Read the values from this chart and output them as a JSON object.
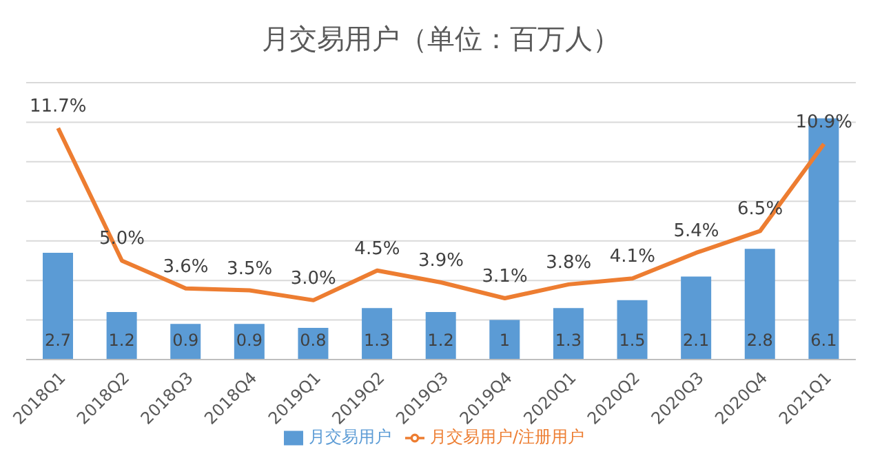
{
  "chart_data": {
    "type": "bar",
    "title": "月交易用户（单位：百万人）",
    "categories": [
      "2018Q1",
      "2018Q2",
      "2018Q3",
      "2018Q4",
      "2019Q1",
      "2019Q2",
      "2019Q3",
      "2019Q4",
      "2020Q1",
      "2020Q2",
      "2020Q3",
      "2020Q4",
      "2021Q1"
    ],
    "series": [
      {
        "name": "月交易用户",
        "color": "#5b9bd5",
        "values": [
          2.7,
          1.2,
          0.9,
          0.9,
          0.8,
          1.3,
          1.2,
          1,
          1.3,
          1.5,
          2.1,
          2.8,
          6.1
        ],
        "value_labels": [
          "2.7",
          "1.2",
          "0.9",
          "0.9",
          "0.8",
          "1.3",
          "1.2",
          "1",
          "1.3",
          "1.5",
          "2.1",
          "2.8",
          "6.1"
        ]
      },
      {
        "name": "月交易用户/注册用户",
        "type": "line",
        "axis": "y2",
        "color": "#ed7d31",
        "values": [
          11.7,
          5.0,
          3.6,
          3.5,
          3.0,
          4.5,
          3.9,
          3.1,
          3.8,
          4.1,
          5.4,
          6.5,
          10.9
        ],
        "value_labels": [
          "11.7%",
          "5.0%",
          "3.6%",
          "3.5%",
          "3.0%",
          "4.5%",
          "3.9%",
          "3.1%",
          "3.8%",
          "4.1%",
          "5.4%",
          "6.5%",
          "10.9%"
        ]
      }
    ],
    "ylim": [
      0,
      7
    ],
    "yticks": [
      {
        "value": 0,
        "label": null
      },
      {
        "value": 1,
        "label": null
      },
      {
        "value": 2,
        "label": null
      },
      {
        "value": 3,
        "label": null
      },
      {
        "value": 4,
        "label": null
      },
      {
        "value": 5,
        "label": null
      },
      {
        "value": 6,
        "label": null
      },
      {
        "value": 7,
        "label": null
      }
    ],
    "y2lim": [
      0,
      14
    ],
    "grid": "y",
    "legend": "bottom",
    "tick_labels": "x",
    "marker": "none"
  }
}
